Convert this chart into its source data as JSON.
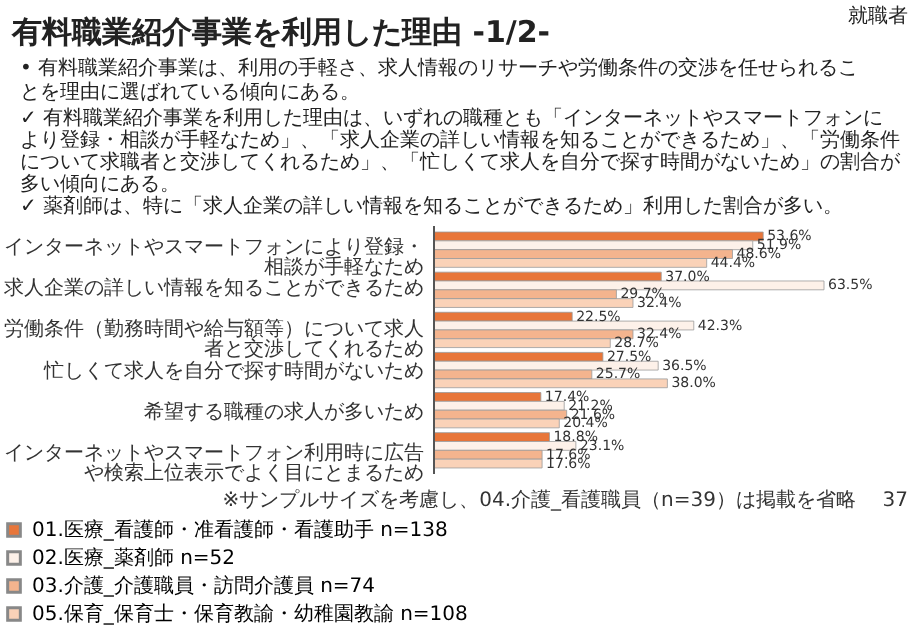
{
  "chart_data": {
    "type": "bar",
    "orientation": "horizontal",
    "title": "有料職業紹介事業を利用した理由 -1/2-",
    "subtitle": "• 有料職業紹介事業は、利用の手軽さ、求人情報のリサーチや労働条件の交渉を任せられることを理由に選ばれている傾向にある。",
    "annotations": [
      "✓ 有料職業紹介事業を利用した理由は、いずれの職種とも「インターネットやスマートフォンにより登録・相談が手軽なため」、「求人企業の詳しい情報を知ることができるため」、「労働条件について求職者と交渉してくれるため」、「忙しくて求人を自分で探す時間がないため」の割合が多い傾向にある。",
      "✓ 薬剤師は、特に「求人企業の詳しい情報を知ることができるため」利用した割合が多い。",
      "※サンプルサイズを考慮し、04.介護_看護職員（n=39）は掲載を省略",
      "就職者",
      "37"
    ],
    "categories": [
      "インターネットやスマートフォンにより登録・相談が手軽なため",
      "求人企業の詳しい情報を知ることができるため",
      "労働条件（勤務時間や給与額等）について求人者と交渉してくれるため",
      "忙しくて求人を自分で探す時間がないため",
      "希望する職種の求人が多いため",
      "インターネットやスマートフォン利用時に広告や検索上位表示でよく目にとまるため"
    ],
    "series": [
      {
        "name": "01.医療_看護師・准看護師・看護助手 n=138",
        "color": "#e8763a",
        "values": [
          53.6,
          37.0,
          22.5,
          27.5,
          17.4,
          18.8
        ],
        "value_labels": [
          "53.6%",
          "37.0%",
          "22.5%",
          "27.5%",
          "17.4%",
          "18.8%"
        ]
      },
      {
        "name": "02.医療_薬剤師 n=52",
        "color": "#fdf1e9",
        "values": [
          51.9,
          63.5,
          42.3,
          36.5,
          21.2,
          23.1
        ],
        "value_labels": [
          "51.9%",
          "63.5%",
          "42.3%",
          "36.5%",
          "21.2%",
          "23.1%"
        ]
      },
      {
        "name": "03.介護_介護職員・訪問介護員 n=74",
        "color": "#f4b48e",
        "values": [
          48.6,
          29.7,
          32.4,
          25.7,
          21.6,
          17.6
        ],
        "value_labels": [
          "48.6%",
          "29.7%",
          "32.4%",
          "25.7%",
          "21.6%",
          "17.6%"
        ]
      },
      {
        "name": "05.保育_保育士・保育教諭・幼稚園教諭 n=108",
        "color": "#fad2b8",
        "values": [
          44.4,
          32.4,
          28.7,
          38.0,
          20.4,
          17.6
        ],
        "value_labels": [
          "44.4%",
          "32.4%",
          "28.7%",
          "38.0%",
          "20.4%",
          "17.6%"
        ]
      }
    ],
    "legend": "bottom"
  }
}
